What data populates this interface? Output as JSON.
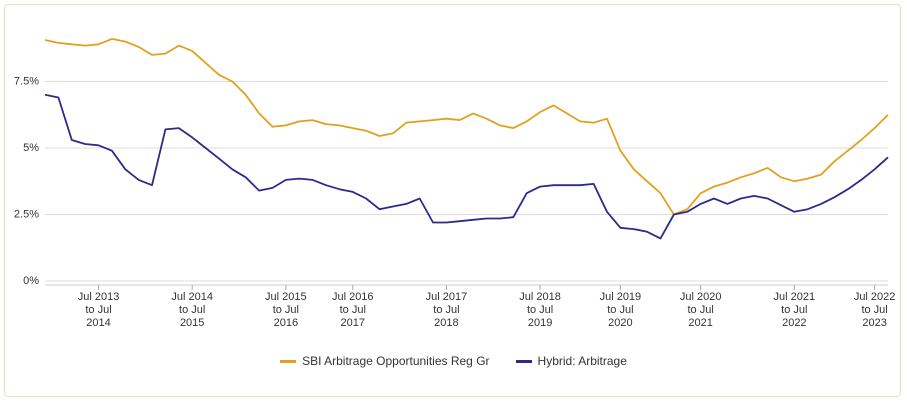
{
  "chart_data": {
    "type": "line",
    "categories": [
      null,
      null,
      null,
      null,
      "Jul 2013 to Jul 2014",
      null,
      null,
      null,
      null,
      null,
      null,
      "Jul 2014 to Jul 2015",
      null,
      null,
      null,
      null,
      null,
      null,
      "Jul 2015 to Jul 2016",
      null,
      null,
      null,
      null,
      "Jul 2016 to Jul 2017",
      null,
      null,
      null,
      null,
      null,
      null,
      "Jul 2017 to Jul 2018",
      null,
      null,
      null,
      null,
      null,
      null,
      "Jul 2018 to Jul 2019",
      null,
      null,
      null,
      null,
      null,
      "Jul 2019 to Jul 2020",
      null,
      null,
      null,
      null,
      null,
      "Jul 2020 to Jul 2021",
      null,
      null,
      null,
      null,
      null,
      null,
      "Jul 2021 to Jul 2022",
      null,
      null,
      null,
      null,
      null,
      "Jul 2022 to Jul 2023",
      null
    ],
    "series": [
      {
        "name": "SBI Arbitrage Opportunities Reg Gr",
        "color": "#e0a21e",
        "values": [
          9.06,
          8.95,
          8.9,
          8.85,
          8.9,
          9.1,
          9.0,
          8.8,
          8.5,
          8.55,
          8.85,
          8.65,
          8.2,
          7.75,
          7.5,
          7.0,
          6.3,
          5.8,
          5.85,
          6.0,
          6.05,
          5.9,
          5.85,
          5.75,
          5.65,
          5.45,
          5.55,
          5.95,
          6.0,
          6.05,
          6.1,
          6.05,
          6.3,
          6.1,
          5.85,
          5.75,
          6.0,
          6.35,
          6.6,
          6.3,
          6.0,
          5.95,
          6.1,
          4.9,
          4.2,
          3.75,
          3.3,
          2.5,
          2.7,
          3.3,
          3.55,
          3.7,
          3.9,
          4.05,
          4.25,
          3.9,
          3.75,
          3.85,
          4.0,
          4.5,
          4.9,
          5.3,
          5.75,
          6.25
        ]
      },
      {
        "name": "Hybrid: Arbitrage",
        "color": "#2b2b8c",
        "values": [
          7.0,
          6.9,
          5.3,
          5.15,
          5.1,
          4.9,
          4.2,
          3.8,
          3.6,
          5.7,
          5.75,
          5.4,
          5.0,
          4.6,
          4.2,
          3.9,
          3.4,
          3.5,
          3.8,
          3.85,
          3.8,
          3.6,
          3.45,
          3.35,
          3.1,
          2.7,
          2.8,
          2.9,
          3.1,
          2.2,
          2.2,
          2.25,
          2.3,
          2.35,
          2.35,
          2.4,
          3.3,
          3.55,
          3.6,
          3.6,
          3.6,
          3.65,
          2.6,
          2.0,
          1.95,
          1.85,
          1.6,
          2.5,
          2.6,
          2.9,
          3.1,
          2.9,
          3.1,
          3.2,
          3.1,
          2.85,
          2.6,
          2.7,
          2.9,
          3.15,
          3.45,
          3.8,
          4.2,
          4.65
        ]
      }
    ],
    "ylim": [
      0,
      10
    ],
    "yticks": [
      {
        "value": 0,
        "label": "0%"
      },
      {
        "value": 2.5,
        "label": "2.5%"
      },
      {
        "value": 5,
        "label": "5%"
      },
      {
        "value": 7.5,
        "label": "7.5%"
      }
    ],
    "grid": true
  }
}
